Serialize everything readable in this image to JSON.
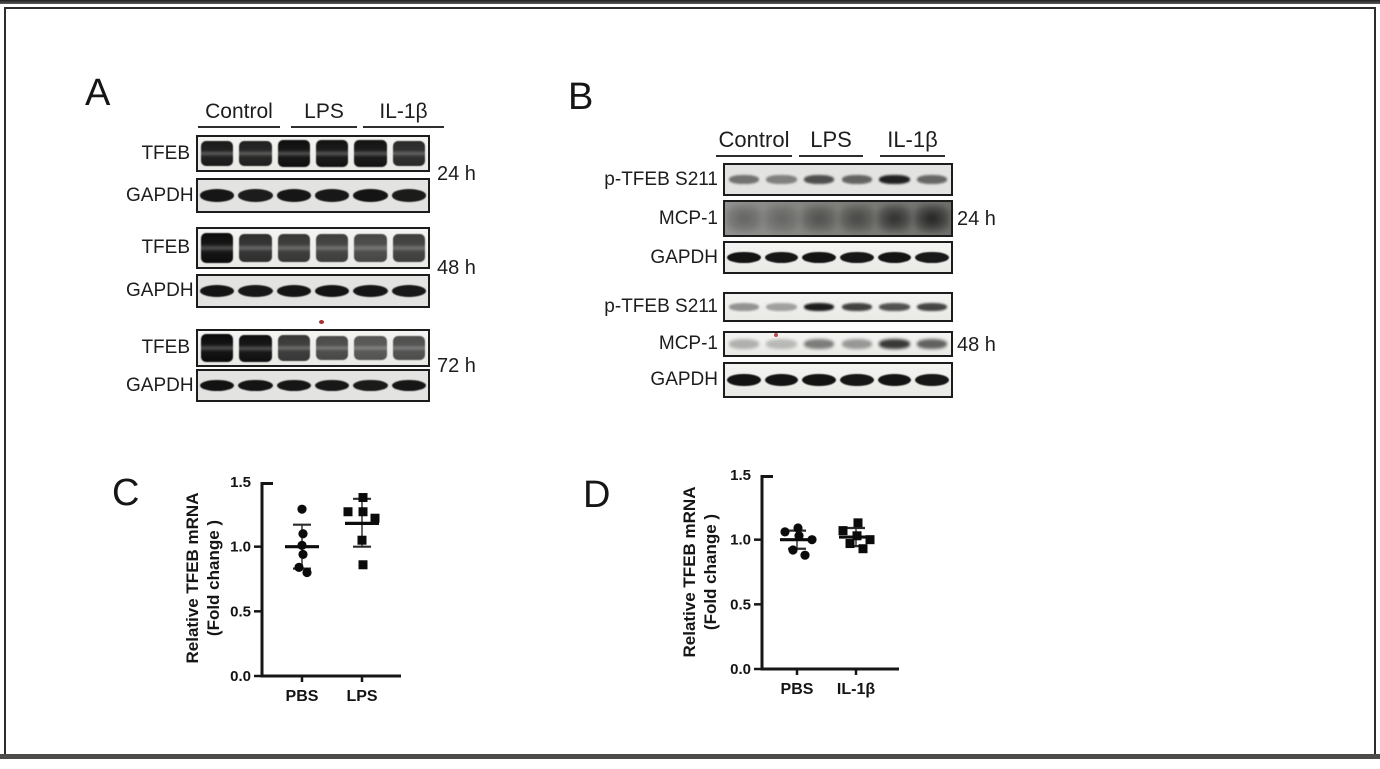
{
  "colors": {
    "background": "#ffffff",
    "frame": "#2d2d2d",
    "text": "#1a1a1a",
    "band": "#0c0c0c",
    "blot_background_light": "#efefec",
    "blot_background_gray": "#e3e3e1",
    "mcp1_dark_background": "#7d7d79",
    "marker": "#0b0b0b",
    "artifact_red": "#a83030"
  },
  "panelA": {
    "letter": "A",
    "col_headers": [
      "Control",
      "LPS",
      "IL-1β"
    ],
    "groups": [
      {
        "time": "24 h",
        "rows": [
          {
            "label": "TFEB",
            "band": "doublet",
            "bg": "light",
            "lanes": [
              0.93,
              0.9,
              0.98,
              0.96,
              0.96,
              0.86
            ]
          },
          {
            "label": "GAPDH",
            "band": "oval",
            "bg": "gray",
            "lanes": [
              0.95,
              0.92,
              0.95,
              0.94,
              0.96,
              0.93
            ]
          }
        ]
      },
      {
        "time": "48 h",
        "rows": [
          {
            "label": "TFEB",
            "band": "doublet",
            "bg": "light",
            "lanes": [
              0.99,
              0.84,
              0.8,
              0.77,
              0.73,
              0.77
            ]
          },
          {
            "label": "GAPDH",
            "band": "oval",
            "bg": "gray",
            "lanes": [
              0.96,
              0.94,
              0.95,
              0.96,
              0.95,
              0.94
            ]
          }
        ]
      },
      {
        "time": "72 h",
        "rows": [
          {
            "label": "TFEB",
            "band": "doublet",
            "bg": "light",
            "lanes": [
              1.0,
              0.98,
              0.8,
              0.72,
              0.67,
              0.7
            ]
          },
          {
            "label": "GAPDH",
            "band": "oval",
            "bg": "gray",
            "lanes": [
              0.97,
              0.96,
              0.95,
              0.94,
              0.93,
              0.95
            ]
          }
        ]
      }
    ]
  },
  "panelB": {
    "letter": "B",
    "col_headers": [
      "Control",
      "LPS",
      "IL-1β"
    ],
    "groups": [
      {
        "time": "24 h",
        "rows": [
          {
            "label": "p-TFEB S211",
            "band": "thin",
            "bg": "gray",
            "lanes": [
              0.55,
              0.48,
              0.72,
              0.62,
              0.95,
              0.6
            ]
          },
          {
            "label": "MCP-1",
            "band": "smudge",
            "bg": "dark",
            "lanes": [
              0.35,
              0.3,
              0.45,
              0.5,
              0.72,
              0.82
            ]
          },
          {
            "label": "GAPDH",
            "band": "oval",
            "bg": "light",
            "lanes": [
              0.97,
              0.95,
              0.96,
              0.95,
              0.96,
              0.94
            ]
          }
        ]
      },
      {
        "time": "48 h",
        "rows": [
          {
            "label": "p-TFEB S211",
            "band": "thin",
            "bg": "light",
            "lanes": [
              0.42,
              0.36,
              0.97,
              0.8,
              0.72,
              0.78
            ]
          },
          {
            "label": "MCP-1",
            "band": "smudge-sm",
            "bg": "light",
            "lanes": [
              0.3,
              0.26,
              0.55,
              0.42,
              0.88,
              0.68
            ]
          },
          {
            "label": "GAPDH",
            "band": "oval",
            "bg": "light",
            "lanes": [
              0.97,
              0.96,
              0.97,
              0.95,
              0.96,
              0.95
            ]
          }
        ]
      }
    ]
  },
  "panelC": {
    "letter": "C",
    "ylabel_line1": "Relative TFEB mRNA",
    "ylabel_line2": "(Fold change )"
  },
  "panelD": {
    "letter": "D",
    "ylabel_line1": "Relative TFEB mRNA",
    "ylabel_line2": "(Fold change )"
  },
  "chart_data": [
    {
      "id": "C",
      "type": "scatter",
      "ylabel": "Relative TFEB mRNA (Fold change )",
      "ylim": [
        0,
        1.5
      ],
      "yticks": [
        "0.0",
        "0.5",
        "1.0",
        "1.5"
      ],
      "categories": [
        "PBS",
        "LPS"
      ],
      "grid": false,
      "series": [
        {
          "name": "PBS",
          "marker": "circle",
          "values": [
            1.29,
            1.1,
            1.01,
            0.94,
            0.84,
            0.8
          ],
          "jitter": [
            0,
            1,
            0,
            1,
            -3,
            5
          ],
          "mean": 1.0,
          "err_low": 0.83,
          "err_high": 1.17
        },
        {
          "name": "LPS",
          "marker": "square",
          "values": [
            1.38,
            1.27,
            1.27,
            1.22,
            1.05,
            0.86
          ],
          "jitter": [
            1,
            -14,
            1,
            13,
            0,
            1
          ],
          "mean": 1.18,
          "err_low": 1.0,
          "err_high": 1.37
        }
      ]
    },
    {
      "id": "D",
      "type": "scatter",
      "ylabel": "Relative TFEB mRNA (Fold change )",
      "ylim": [
        0,
        1.5
      ],
      "yticks": [
        "0.0",
        "0.5",
        "1.0",
        "1.5"
      ],
      "categories": [
        "PBS",
        "IL-1β"
      ],
      "grid": false,
      "series": [
        {
          "name": "PBS",
          "marker": "circle",
          "values": [
            1.09,
            1.06,
            1.03,
            1.0,
            0.92,
            0.88
          ],
          "jitter": [
            1,
            -12,
            2,
            15,
            -4,
            8
          ],
          "mean": 1.0,
          "err_low": 0.93,
          "err_high": 1.07
        },
        {
          "name": "IL-1β",
          "marker": "square",
          "values": [
            1.13,
            1.07,
            1.03,
            1.0,
            0.97,
            0.93
          ],
          "jitter": [
            2,
            -13,
            1,
            14,
            -6,
            7
          ],
          "mean": 1.02,
          "err_low": 0.95,
          "err_high": 1.09
        }
      ]
    }
  ]
}
